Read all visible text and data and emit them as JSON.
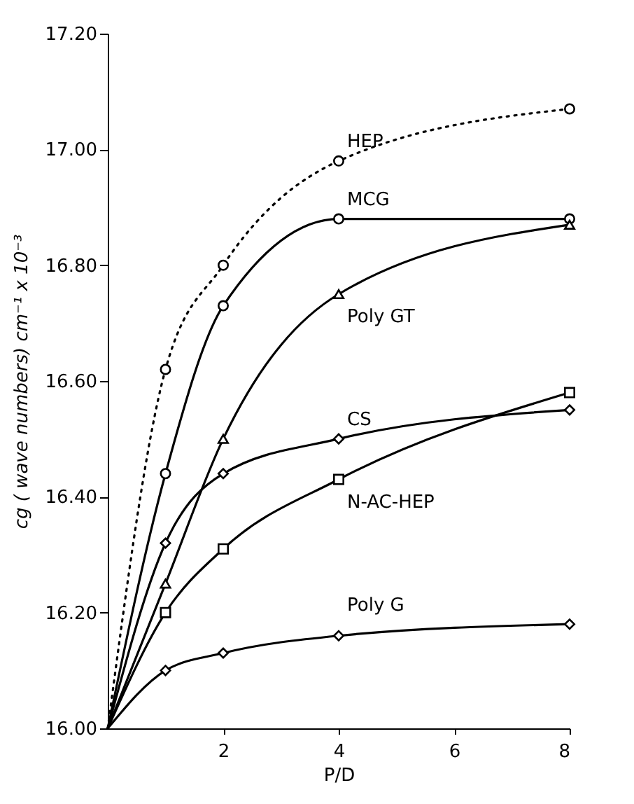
{
  "chart_data": {
    "type": "line",
    "xlabel": "P/D",
    "ylabel": "cg ( wave numbers)  cm⁻¹ x 10⁻³",
    "xlim": [
      0,
      8
    ],
    "xticks": [
      2,
      4,
      6,
      8
    ],
    "ylim": [
      16.0,
      17.2
    ],
    "yticks": [
      {
        "value": 16.0,
        "label": "16.00"
      },
      {
        "value": 16.2,
        "label": "16.20"
      },
      {
        "value": 16.4,
        "label": "16.40"
      },
      {
        "value": 16.6,
        "label": "16.60"
      },
      {
        "value": 16.8,
        "label": "16.80"
      },
      {
        "value": 17.0,
        "label": "17.00"
      },
      {
        "value": 17.2,
        "label": "17.20"
      }
    ],
    "grid": false,
    "series": [
      {
        "name": "HEP",
        "color": "#000000",
        "x": [
          0,
          1,
          2,
          4,
          8
        ],
        "values": [
          16.0,
          16.62,
          16.8,
          16.98,
          17.07
        ],
        "marker": "circle",
        "line_style": "dotted"
      },
      {
        "name": "MCG",
        "color": "#000000",
        "x": [
          0,
          1,
          2,
          4,
          8
        ],
        "values": [
          16.0,
          16.44,
          16.73,
          16.88,
          16.88
        ],
        "marker": "circle",
        "line_style": "solid"
      },
      {
        "name": "Poly GT",
        "color": "#000000",
        "x": [
          0,
          1,
          2,
          4,
          8
        ],
        "values": [
          16.0,
          16.25,
          16.5,
          16.75,
          16.87
        ],
        "marker": "triangle",
        "line_style": "solid"
      },
      {
        "name": "CS",
        "color": "#000000",
        "x": [
          0,
          1,
          2,
          4,
          8
        ],
        "values": [
          16.0,
          16.32,
          16.44,
          16.5,
          16.55
        ],
        "marker": "diamond",
        "line_style": "solid"
      },
      {
        "name": "N-AC-HEP",
        "color": "#000000",
        "x": [
          0,
          1,
          2,
          4,
          8
        ],
        "values": [
          16.0,
          16.2,
          16.31,
          16.43,
          16.58
        ],
        "marker": "square",
        "line_style": "solid"
      },
      {
        "name": "Poly G",
        "color": "#000000",
        "x": [
          0,
          1,
          2,
          4,
          8
        ],
        "values": [
          16.0,
          16.1,
          16.13,
          16.16,
          16.18
        ],
        "marker": "diamond",
        "line_style": "solid"
      }
    ]
  }
}
